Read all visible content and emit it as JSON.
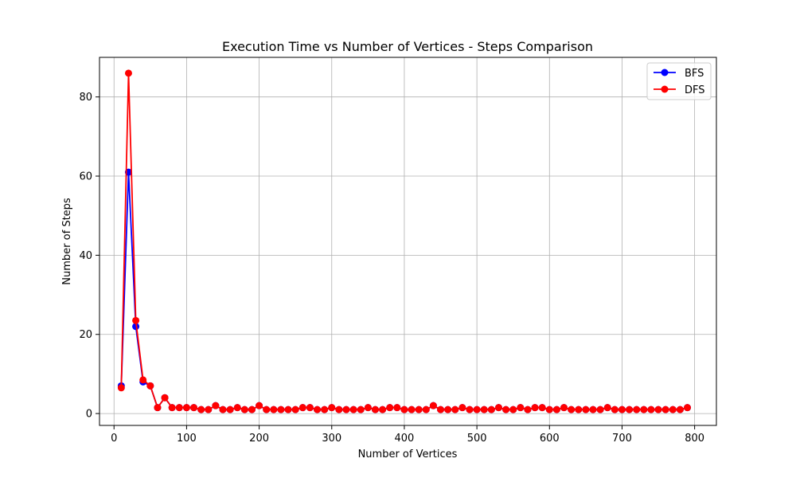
{
  "chart_data": {
    "type": "line",
    "title": "Execution Time vs Number of Vertices - Steps Comparison",
    "xlabel": "Number of Vertices",
    "ylabel": "Number of Steps",
    "xlim": [
      -20,
      830
    ],
    "ylim": [
      -3,
      90
    ],
    "xticks": [
      0,
      100,
      200,
      300,
      400,
      500,
      600,
      700,
      800
    ],
    "yticks": [
      0,
      20,
      40,
      60,
      80
    ],
    "grid": true,
    "legend_position": "top-right",
    "x": [
      10,
      20,
      30,
      40,
      50,
      60,
      70,
      80,
      90,
      100,
      110,
      120,
      130,
      140,
      150,
      160,
      170,
      180,
      190,
      200,
      210,
      220,
      230,
      240,
      250,
      260,
      270,
      280,
      290,
      300,
      310,
      320,
      330,
      340,
      350,
      360,
      370,
      380,
      390,
      400,
      410,
      420,
      430,
      440,
      450,
      460,
      470,
      480,
      490,
      500,
      510,
      520,
      530,
      540,
      550,
      560,
      570,
      580,
      590,
      600,
      610,
      620,
      630,
      640,
      650,
      660,
      670,
      680,
      690,
      700,
      710,
      720,
      730,
      740,
      750,
      760,
      770,
      780,
      790
    ],
    "series": [
      {
        "name": "BFS",
        "color": "#0000ff",
        "values": [
          7,
          61,
          22,
          8,
          7,
          1.5,
          4,
          1.5,
          1.5,
          1.5,
          1.5,
          1,
          1,
          2,
          1,
          1,
          1.5,
          1,
          1,
          2,
          1,
          1,
          1,
          1,
          1,
          1.5,
          1.5,
          1,
          1,
          1.5,
          1,
          1,
          1,
          1,
          1.5,
          1,
          1,
          1.5,
          1.5,
          1,
          1,
          1,
          1,
          2,
          1,
          1,
          1,
          1.5,
          1,
          1,
          1,
          1,
          1.5,
          1,
          1,
          1.5,
          1,
          1.5,
          1.5,
          1,
          1,
          1.5,
          1,
          1,
          1,
          1,
          1,
          1.5,
          1,
          1,
          1,
          1,
          1,
          1,
          1,
          1,
          1,
          1,
          1.5
        ]
      },
      {
        "name": "DFS",
        "color": "#ff0000",
        "values": [
          6.5,
          86,
          23.5,
          8.5,
          7,
          1.5,
          4,
          1.5,
          1.5,
          1.5,
          1.5,
          1,
          1,
          2,
          1,
          1,
          1.5,
          1,
          1,
          2,
          1,
          1,
          1,
          1,
          1,
          1.5,
          1.5,
          1,
          1,
          1.5,
          1,
          1,
          1,
          1,
          1.5,
          1,
          1,
          1.5,
          1.5,
          1,
          1,
          1,
          1,
          2,
          1,
          1,
          1,
          1.5,
          1,
          1,
          1,
          1,
          1.5,
          1,
          1,
          1.5,
          1,
          1.5,
          1.5,
          1,
          1,
          1.5,
          1,
          1,
          1,
          1,
          1,
          1.5,
          1,
          1,
          1,
          1,
          1,
          1,
          1,
          1,
          1,
          1,
          1.5
        ]
      }
    ]
  }
}
